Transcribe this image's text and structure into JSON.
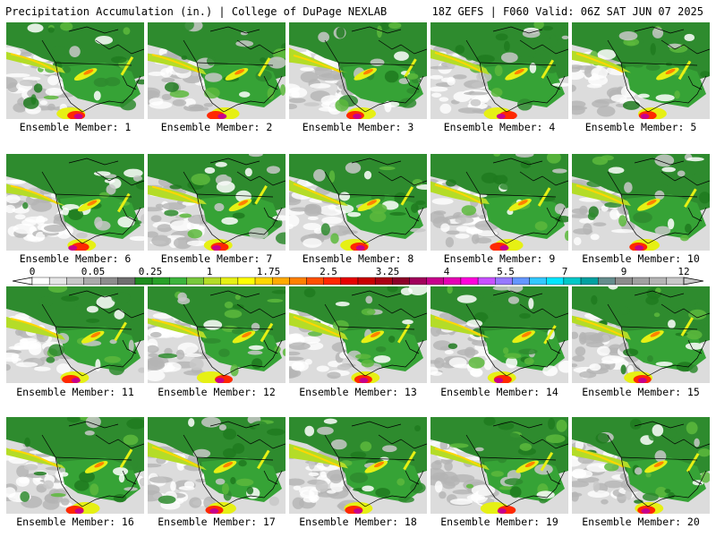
{
  "header": {
    "left": "Precipitation Accumulation (in.) | College of DuPage NEXLAB",
    "right": "18Z GEFS | F060 Valid: 06Z SAT JUN 07 2025"
  },
  "colorbar": {
    "labels": [
      "0",
      "0.05",
      "0.25",
      "1",
      "1.75",
      "2.5",
      "3.25",
      "4",
      "5.5",
      "7",
      "9",
      "12"
    ],
    "colors": [
      "#ffffff",
      "#e6e6e6",
      "#c8c8c8",
      "#aaaaaa",
      "#8c8c8c",
      "#6e6e6e",
      "#1e8c1e",
      "#28a028",
      "#3cb43c",
      "#78c83c",
      "#b4dc28",
      "#e6f014",
      "#ffff00",
      "#ffd700",
      "#ffaa00",
      "#ff8000",
      "#ff5000",
      "#ff2800",
      "#e60000",
      "#c80000",
      "#aa0014",
      "#8c0028",
      "#a0005a",
      "#c8008c",
      "#e600b4",
      "#ff00dc",
      "#c850ff",
      "#9678ff",
      "#6496ff",
      "#32c8ff",
      "#00e6ff",
      "#00c8c8",
      "#00a0a0",
      "#648c8c",
      "#8c8c8c",
      "#a0a0a0",
      "#b4b4b4",
      "#c8c8c8"
    ]
  },
  "members": [
    {
      "label": "Ensemble Member: 1"
    },
    {
      "label": "Ensemble Member: 2"
    },
    {
      "label": "Ensemble Member: 3"
    },
    {
      "label": "Ensemble Member: 4"
    },
    {
      "label": "Ensemble Member: 5"
    },
    {
      "label": "Ensemble Member: 6"
    },
    {
      "label": "Ensemble Member: 7"
    },
    {
      "label": "Ensemble Member: 8"
    },
    {
      "label": "Ensemble Member: 9"
    },
    {
      "label": "Ensemble Member: 10"
    },
    {
      "label": "Ensemble Member: 11"
    },
    {
      "label": "Ensemble Member: 12"
    },
    {
      "label": "Ensemble Member: 13"
    },
    {
      "label": "Ensemble Member: 14"
    },
    {
      "label": "Ensemble Member: 15"
    },
    {
      "label": "Ensemble Member: 16"
    },
    {
      "label": "Ensemble Member: 17"
    },
    {
      "label": "Ensemble Member: 18"
    },
    {
      "label": "Ensemble Member: 19"
    },
    {
      "label": "Ensemble Member: 20"
    }
  ]
}
